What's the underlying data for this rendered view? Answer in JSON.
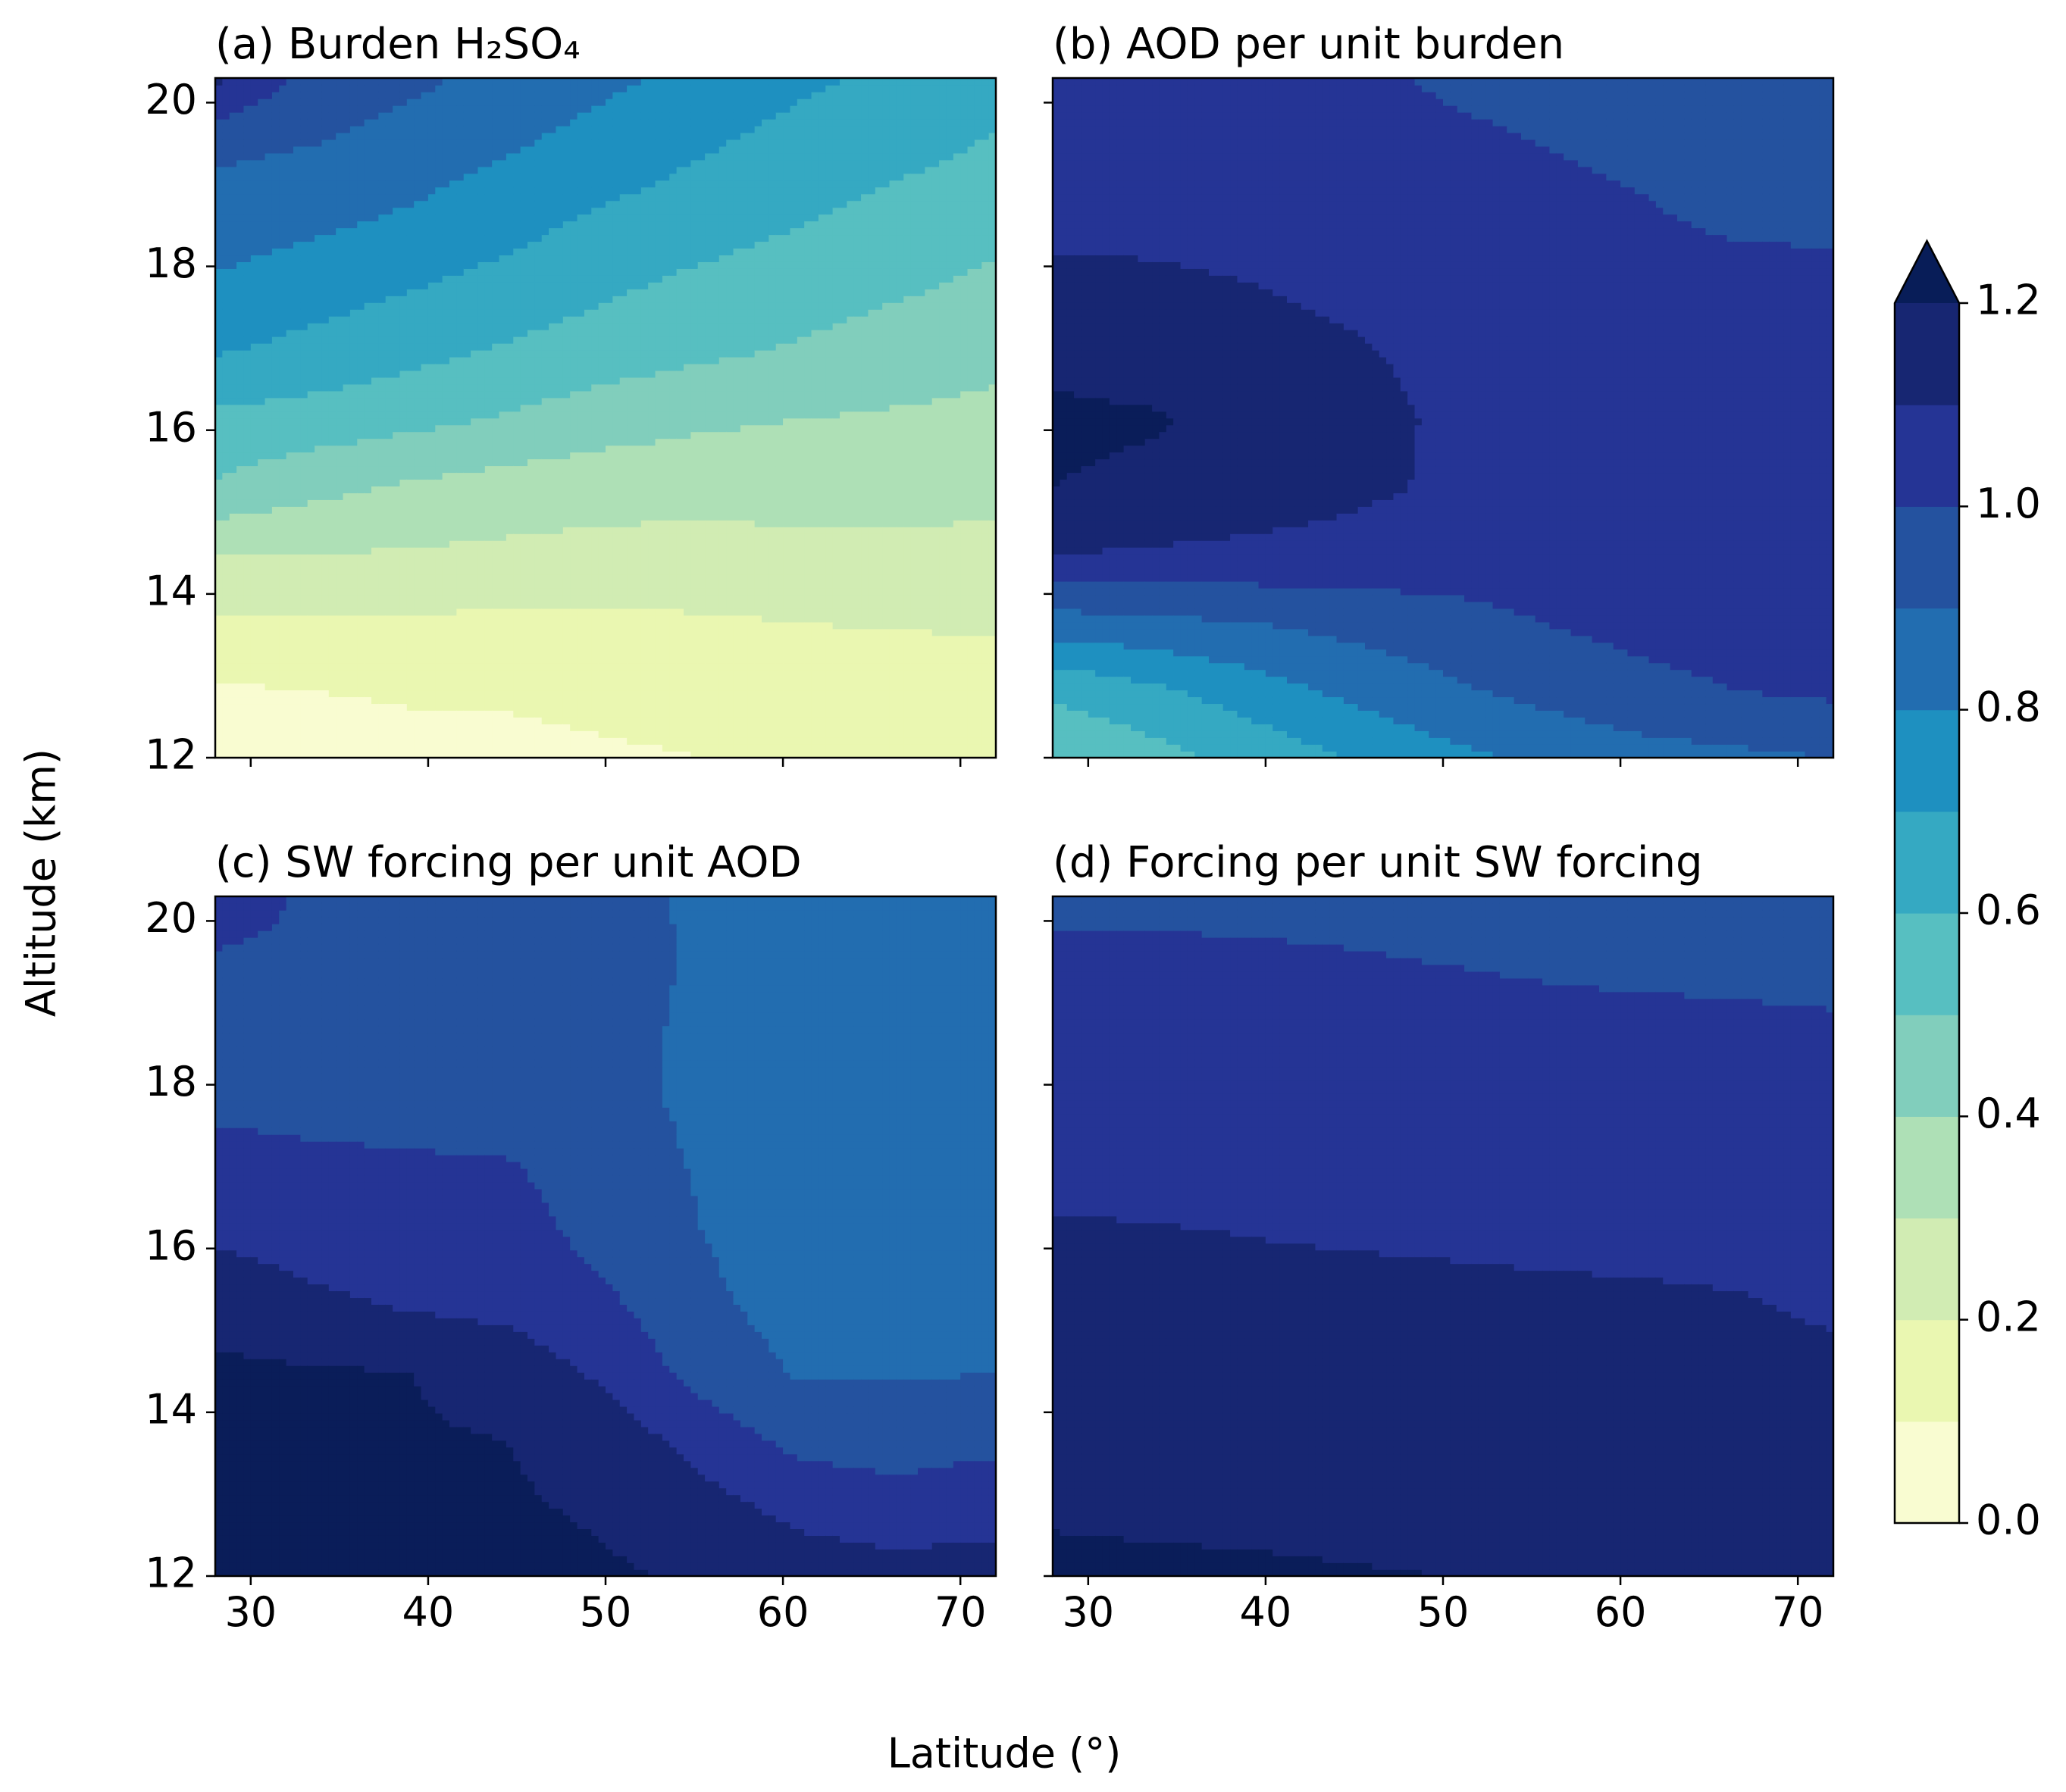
{
  "figure": {
    "ylabel": "Altitude (km)",
    "xlabel": "Latitude (°)"
  },
  "colorbar": {
    "cmap": "YlGnBu",
    "levels": [
      0.0,
      0.1,
      0.2,
      0.3,
      0.4,
      0.5,
      0.6,
      0.7,
      0.8,
      0.9,
      1.0,
      1.1,
      1.2
    ],
    "tick_values": [
      0.0,
      0.2,
      0.4,
      0.6,
      0.8,
      1.0,
      1.2
    ],
    "tick_labels": [
      "0.0",
      "0.2",
      "0.4",
      "0.6",
      "0.8",
      "1.0",
      "1.2"
    ],
    "extend": "max",
    "colors": [
      "#f9fcd1",
      "#eaf7b1",
      "#d1ecb3",
      "#aee0b6",
      "#81cebc",
      "#57bfc1",
      "#35a9c2",
      "#1e90c0",
      "#226db0",
      "#24529f",
      "#253495",
      "#172672",
      "#0a1d59"
    ],
    "over_color": "#081d58"
  },
  "chart_data": [
    {
      "type": "contourf",
      "title": "(a) Burden H₂SO₄",
      "xlim": [
        28,
        72
      ],
      "ylim": [
        12,
        20.3
      ],
      "xticks": [
        30,
        40,
        50,
        60,
        70
      ],
      "yticks": [
        12,
        14,
        16,
        18,
        20
      ],
      "x": [
        28,
        33.5,
        39,
        44.5,
        50,
        55.5,
        61,
        66.5,
        72
      ],
      "y": [
        12,
        12.83,
        13.66,
        14.49,
        15.32,
        16.15,
        16.98,
        17.81,
        18.64,
        19.47,
        20.3
      ],
      "z": [
        [
          0.05,
          0.06,
          0.07,
          0.08,
          0.09,
          0.1,
          0.1,
          0.11,
          0.11
        ],
        [
          0.09,
          0.1,
          0.11,
          0.11,
          0.12,
          0.13,
          0.14,
          0.14,
          0.15
        ],
        [
          0.19,
          0.19,
          0.19,
          0.18,
          0.18,
          0.19,
          0.2,
          0.21,
          0.21
        ],
        [
          0.3,
          0.3,
          0.29,
          0.28,
          0.27,
          0.27,
          0.28,
          0.28,
          0.28
        ],
        [
          0.49,
          0.43,
          0.39,
          0.36,
          0.34,
          0.33,
          0.33,
          0.33,
          0.32
        ],
        [
          0.58,
          0.56,
          0.53,
          0.49,
          0.45,
          0.42,
          0.4,
          0.39,
          0.38
        ],
        [
          0.71,
          0.67,
          0.63,
          0.59,
          0.55,
          0.52,
          0.49,
          0.45,
          0.42
        ],
        [
          0.79,
          0.75,
          0.71,
          0.67,
          0.62,
          0.58,
          0.55,
          0.52,
          0.48
        ],
        [
          0.86,
          0.83,
          0.79,
          0.74,
          0.69,
          0.65,
          0.61,
          0.57,
          0.54
        ],
        [
          0.92,
          0.9,
          0.86,
          0.81,
          0.76,
          0.71,
          0.66,
          0.63,
          0.59
        ],
        [
          1.12,
          0.96,
          0.92,
          0.87,
          0.82,
          0.77,
          0.72,
          0.68,
          0.64
        ]
      ]
    },
    {
      "type": "contourf",
      "title": "(b) AOD per unit burden",
      "xlim": [
        28,
        72
      ],
      "ylim": [
        12,
        20.3
      ],
      "xticks": [
        30,
        40,
        50,
        60,
        70
      ],
      "yticks": [
        12,
        14,
        16,
        18,
        20
      ],
      "x": [
        28,
        33.5,
        39,
        44.5,
        50,
        55.5,
        61,
        66.5,
        72
      ],
      "y": [
        12,
        12.83,
        13.66,
        14.49,
        15.32,
        16.15,
        16.98,
        17.81,
        18.64,
        19.47,
        20.3
      ],
      "z": [
        [
          0.5,
          0.56,
          0.63,
          0.7,
          0.77,
          0.82,
          0.86,
          0.88,
          0.9
        ],
        [
          0.62,
          0.68,
          0.75,
          0.82,
          0.88,
          0.93,
          0.97,
          1.0,
          1.02
        ],
        [
          0.86,
          0.88,
          0.9,
          0.93,
          0.96,
          1.0,
          1.03,
          1.05,
          1.06
        ],
        [
          1.1,
          1.09,
          1.08,
          1.07,
          1.06,
          1.06,
          1.06,
          1.06,
          1.06
        ],
        [
          1.2,
          1.18,
          1.15,
          1.12,
          1.09,
          1.07,
          1.06,
          1.06,
          1.06
        ],
        [
          1.22,
          1.21,
          1.17,
          1.13,
          1.09,
          1.07,
          1.06,
          1.05,
          1.05
        ],
        [
          1.17,
          1.15,
          1.13,
          1.11,
          1.08,
          1.06,
          1.05,
          1.04,
          1.04
        ],
        [
          1.13,
          1.12,
          1.1,
          1.08,
          1.06,
          1.05,
          1.04,
          1.03,
          1.02
        ],
        [
          1.06,
          1.06,
          1.05,
          1.05,
          1.04,
          1.03,
          1.01,
          0.98,
          0.98
        ],
        [
          1.05,
          1.05,
          1.04,
          1.03,
          1.02,
          1.0,
          0.98,
          0.96,
          0.97
        ],
        [
          1.04,
          1.04,
          1.03,
          1.02,
          0.99,
          0.97,
          0.96,
          0.96,
          0.95
        ]
      ]
    },
    {
      "type": "contourf",
      "title": "(c) SW forcing per unit AOD",
      "xlim": [
        28,
        72
      ],
      "ylim": [
        12,
        20.3
      ],
      "xticks": [
        30,
        40,
        50,
        60,
        70
      ],
      "yticks": [
        12,
        14,
        16,
        18,
        20
      ],
      "x": [
        28,
        33.5,
        39,
        44.5,
        50,
        55.5,
        61,
        66.5,
        72
      ],
      "y": [
        12,
        12.83,
        13.66,
        14.49,
        15.32,
        16.15,
        16.98,
        17.81,
        18.64,
        19.47,
        20.3
      ],
      "z": [
        [
          1.25,
          1.24,
          1.23,
          1.22,
          1.21,
          1.19,
          1.16,
          1.14,
          1.15
        ],
        [
          1.24,
          1.23,
          1.22,
          1.21,
          1.19,
          1.14,
          1.07,
          1.04,
          1.06
        ],
        [
          1.23,
          1.22,
          1.21,
          1.2,
          1.16,
          1.06,
          0.97,
          0.96,
          0.98
        ],
        [
          1.22,
          1.21,
          1.2,
          1.16,
          1.08,
          0.96,
          0.89,
          0.89,
          0.9
        ],
        [
          1.16,
          1.12,
          1.09,
          1.07,
          1.02,
          0.92,
          0.86,
          0.85,
          0.85
        ],
        [
          1.09,
          1.06,
          1.05,
          1.04,
          0.97,
          0.9,
          0.85,
          0.82,
          0.8
        ],
        [
          1.05,
          1.03,
          1.02,
          1.01,
          0.95,
          0.89,
          0.86,
          0.82,
          0.81
        ],
        [
          0.97,
          0.96,
          0.95,
          0.94,
          0.93,
          0.88,
          0.86,
          0.83,
          0.82
        ],
        [
          0.96,
          0.96,
          0.95,
          0.94,
          0.93,
          0.88,
          0.87,
          0.86,
          0.85
        ],
        [
          0.97,
          0.96,
          0.95,
          0.94,
          0.93,
          0.89,
          0.88,
          0.87,
          0.86
        ],
        [
          1.1,
          0.97,
          0.96,
          0.95,
          0.94,
          0.88,
          0.87,
          0.86,
          0.86
        ]
      ]
    },
    {
      "type": "contourf",
      "title": "(d) Forcing per unit SW forcing",
      "xlim": [
        28,
        72
      ],
      "ylim": [
        12,
        20.3
      ],
      "xticks": [
        30,
        40,
        50,
        60,
        70
      ],
      "yticks": [
        12,
        14,
        16,
        18,
        20
      ],
      "x": [
        28,
        33.5,
        39,
        44.5,
        50,
        55.5,
        61,
        66.5,
        72
      ],
      "y": [
        12,
        12.83,
        13.66,
        14.49,
        15.32,
        16.15,
        16.98,
        17.81,
        18.64,
        19.47,
        20.3
      ],
      "z": [
        [
          1.24,
          1.23,
          1.22,
          1.21,
          1.2,
          1.18,
          1.17,
          1.16,
          1.15
        ],
        [
          1.18,
          1.17,
          1.17,
          1.16,
          1.16,
          1.15,
          1.15,
          1.15,
          1.14
        ],
        [
          1.16,
          1.16,
          1.16,
          1.15,
          1.15,
          1.15,
          1.14,
          1.14,
          1.14
        ],
        [
          1.15,
          1.15,
          1.15,
          1.15,
          1.14,
          1.14,
          1.14,
          1.14,
          1.13
        ],
        [
          1.14,
          1.14,
          1.14,
          1.14,
          1.14,
          1.13,
          1.12,
          1.11,
          1.08
        ],
        [
          1.12,
          1.11,
          1.1,
          1.09,
          1.08,
          1.07,
          1.07,
          1.06,
          1.06
        ],
        [
          1.06,
          1.06,
          1.06,
          1.06,
          1.05,
          1.05,
          1.05,
          1.05,
          1.05
        ],
        [
          1.05,
          1.05,
          1.05,
          1.05,
          1.04,
          1.04,
          1.04,
          1.04,
          1.04
        ],
        [
          1.04,
          1.04,
          1.04,
          1.04,
          1.04,
          1.03,
          1.03,
          1.03,
          1.02
        ],
        [
          1.03,
          1.03,
          1.02,
          1.01,
          1.0,
          0.99,
          0.98,
          0.97,
          0.96
        ],
        [
          0.97,
          0.97,
          0.97,
          0.97,
          0.96,
          0.96,
          0.96,
          0.96,
          0.95
        ]
      ]
    }
  ]
}
